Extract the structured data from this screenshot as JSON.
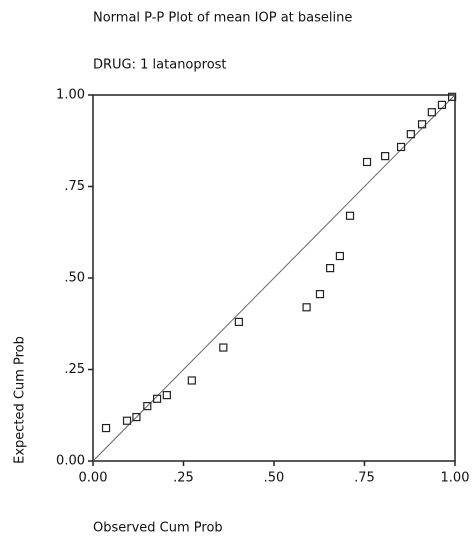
{
  "chart_data": {
    "type": "scatter",
    "title": "Normal P-P Plot of mean IOP at baseline",
    "subtitle": "DRUG:  1   latanoprost",
    "x_label": "Observed Cum Prob",
    "y_label": "Expected Cum Prob",
    "x": [
      0.036,
      0.094,
      0.12,
      0.15,
      0.177,
      0.204,
      0.273,
      0.36,
      0.403,
      0.59,
      0.627,
      0.655,
      0.682,
      0.71,
      0.757,
      0.807,
      0.851,
      0.878,
      0.909,
      0.936,
      0.964,
      0.992
    ],
    "values": [
      0.09,
      0.11,
      0.12,
      0.15,
      0.17,
      0.18,
      0.22,
      0.31,
      0.38,
      0.42,
      0.456,
      0.527,
      0.56,
      0.67,
      0.817,
      0.833,
      0.858,
      0.893,
      0.92,
      0.953,
      0.973,
      0.995
    ],
    "color": "#222222",
    "xlim": [
      0,
      1
    ],
    "ylim": [
      0,
      1
    ],
    "xticks": [
      {
        "value": 0,
        "label": "0.00"
      },
      {
        "value": 0.25,
        "label": ".25"
      },
      {
        "value": 0.5,
        "label": ".50"
      },
      {
        "value": 0.75,
        "label": ".75"
      },
      {
        "value": 1,
        "label": "1.00"
      }
    ],
    "yticks": [
      {
        "value": 0,
        "label": "0.00"
      },
      {
        "value": 0.25,
        "label": ".25"
      },
      {
        "value": 0.5,
        "label": ".50"
      },
      {
        "value": 0.75,
        "label": ".75"
      },
      {
        "value": 1,
        "label": "1.00"
      }
    ]
  }
}
